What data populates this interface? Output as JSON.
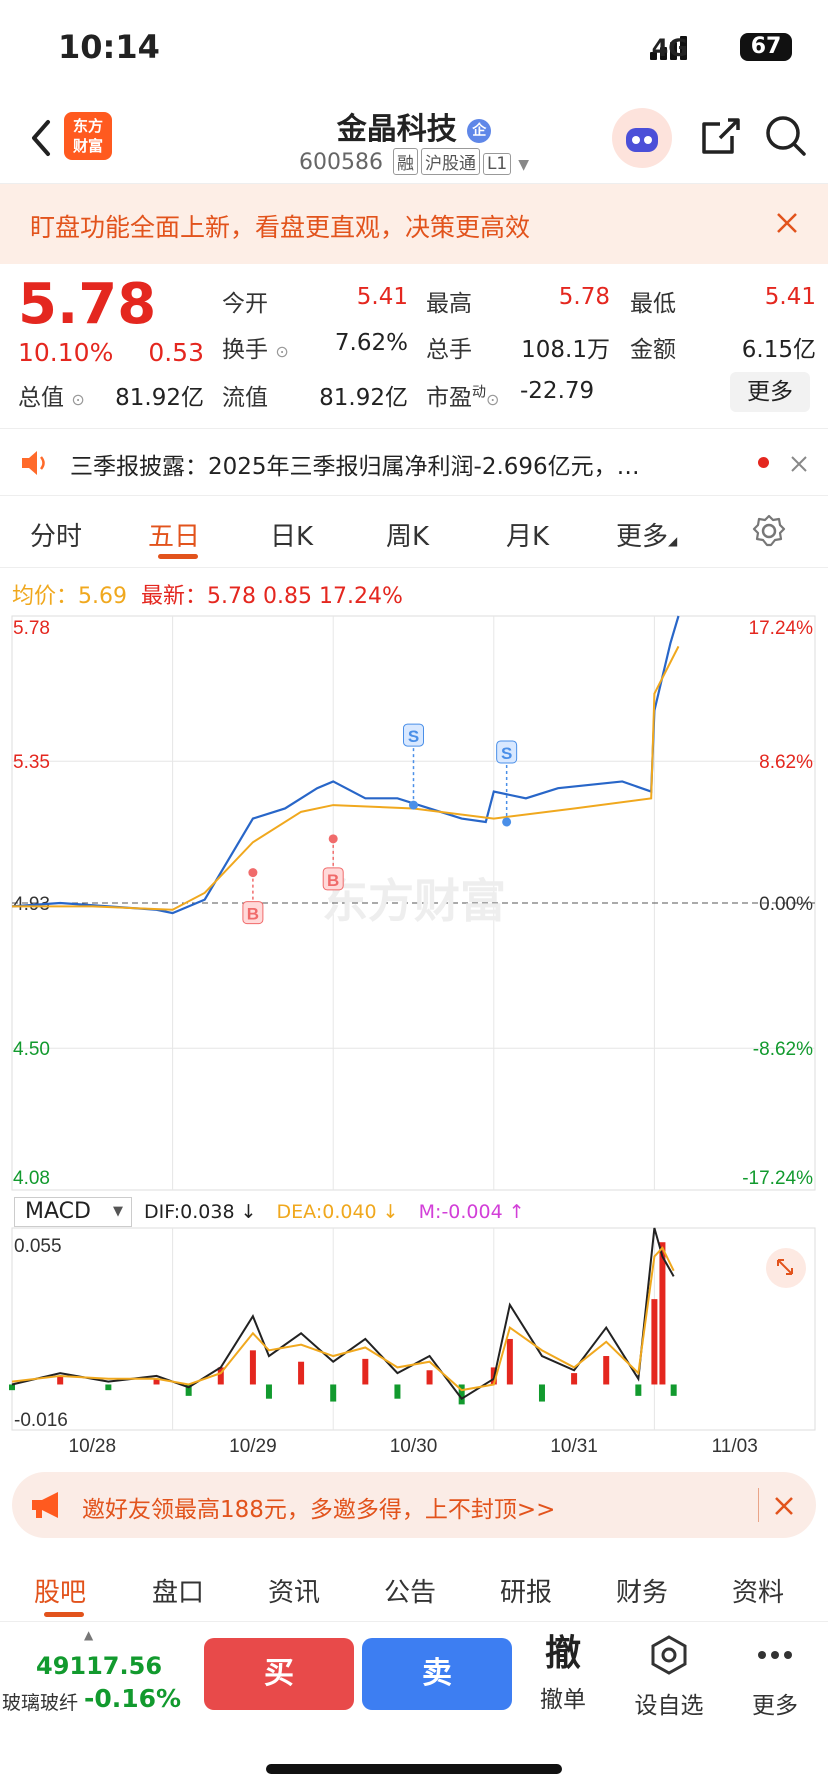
{
  "status_bar": {
    "time": "10:14",
    "network": "4G",
    "battery": "67"
  },
  "header": {
    "logo_text": "东方财富",
    "stock_name": "金晶科技",
    "stock_code": "600586",
    "tags": [
      "融",
      "沪股通",
      "L1"
    ],
    "verified_badge": "企"
  },
  "promo_banner": "盯盘功能全面上新，看盘更直观，决策更高效",
  "quote": {
    "price": "5.78",
    "change_pct": "10.10%",
    "change": "0.53",
    "open_label": "今开",
    "open": "5.41",
    "high_label": "最高",
    "high": "5.78",
    "low_label": "最低",
    "low": "5.41",
    "turnover_label": "换手",
    "turnover": "7.62%",
    "volume_label": "总手",
    "volume": "108.1万",
    "amount_label": "金额",
    "amount": "6.15亿",
    "mktcap_label": "总值",
    "mktcap": "81.92亿",
    "float_label": "流值",
    "float_cap": "81.92亿",
    "pe_label": "市盈",
    "pe_sup": "动",
    "pe": "-22.79",
    "more_button": "更多"
  },
  "notice": "三季报披露：2025年三季报归属净利润-2.696亿元，…",
  "chart_tabs": [
    "分时",
    "五日",
    "日K",
    "周K",
    "月K",
    "更多"
  ],
  "active_chart_tab": "五日",
  "chart_legend": {
    "avg_label": "均价：",
    "avg": "5.69",
    "latest_label": "最新：",
    "latest": "5.78",
    "latest_change": "0.85",
    "latest_pct": "17.24%"
  },
  "chart_data": [
    {
      "type": "line",
      "title": "",
      "x_labels": [
        "10/28",
        "10/29",
        "10/30",
        "10/31",
        "11/03"
      ],
      "y_ticks": [
        "5.78",
        "5.35",
        "4.93",
        "4.50",
        "4.08"
      ],
      "y_pct_ticks": [
        "17.24%",
        "8.62%",
        "0.00%",
        "-8.62%",
        "-17.24%"
      ],
      "ylim": [
        4.08,
        5.78
      ],
      "reference_price": 4.93,
      "series": [
        {
          "name": "最新",
          "color": "#2866c8",
          "x": [
            0,
            0.3,
            0.6,
            0.9,
            1.0,
            1.2,
            1.4,
            1.5,
            1.7,
            1.9,
            2.0,
            2.2,
            2.4,
            2.6,
            2.8,
            2.95,
            3.0,
            3.2,
            3.4,
            3.6,
            3.8,
            3.98,
            4.0,
            4.1,
            4.15
          ],
          "values": [
            4.92,
            4.93,
            4.92,
            4.91,
            4.9,
            4.94,
            5.1,
            5.18,
            5.21,
            5.27,
            5.29,
            5.24,
            5.24,
            5.21,
            5.18,
            5.17,
            5.26,
            5.24,
            5.27,
            5.28,
            5.29,
            5.26,
            5.5,
            5.7,
            5.78
          ]
        },
        {
          "name": "均价",
          "color": "#f0a81e",
          "x": [
            0,
            0.5,
            1.0,
            1.2,
            1.5,
            1.8,
            2.0,
            2.5,
            3.0,
            3.5,
            3.98,
            4.0,
            4.15
          ],
          "values": [
            4.92,
            4.92,
            4.91,
            4.96,
            5.11,
            5.2,
            5.22,
            5.21,
            5.18,
            5.21,
            5.24,
            5.55,
            5.69
          ]
        }
      ],
      "trade_markers": [
        {
          "label": "B",
          "x": 1.5,
          "price": 5.02
        },
        {
          "label": "B",
          "x": 2.0,
          "price": 5.12
        },
        {
          "label": "S",
          "x": 2.5,
          "price": 5.22
        },
        {
          "label": "S",
          "x": 3.08,
          "price": 5.17
        }
      ]
    },
    {
      "type": "bar",
      "title": "MACD",
      "y_ticks": [
        "0.055",
        "-0.016"
      ],
      "ylim": [
        -0.016,
        0.055
      ],
      "indicators": {
        "dif": "DIF:0.038 ↓",
        "dea": "DEA:0.040 ↓",
        "m": "M:-0.004 ↑"
      },
      "x": [
        0,
        0.3,
        0.6,
        0.9,
        1.1,
        1.3,
        1.5,
        1.6,
        1.8,
        2.0,
        2.2,
        2.4,
        2.6,
        2.8,
        3.0,
        3.1,
        3.3,
        3.5,
        3.7,
        3.9,
        4.0,
        4.05,
        4.12
      ],
      "histogram": [
        -0.002,
        0.003,
        -0.002,
        0.002,
        -0.004,
        0.006,
        0.012,
        -0.005,
        0.008,
        -0.006,
        0.009,
        -0.005,
        0.005,
        -0.007,
        0.006,
        0.016,
        -0.006,
        0.004,
        0.01,
        -0.004,
        0.03,
        0.05,
        -0.004
      ],
      "dif": [
        0.0,
        0.004,
        0.001,
        0.003,
        -0.001,
        0.006,
        0.024,
        0.01,
        0.018,
        0.008,
        0.016,
        0.004,
        0.01,
        -0.005,
        0.002,
        0.028,
        0.01,
        0.005,
        0.02,
        0.002,
        0.055,
        0.045,
        0.038
      ],
      "dea": [
        0.001,
        0.003,
        0.002,
        0.002,
        0.0,
        0.004,
        0.018,
        0.012,
        0.014,
        0.01,
        0.013,
        0.006,
        0.008,
        -0.002,
        0.0,
        0.02,
        0.012,
        0.006,
        0.015,
        0.004,
        0.045,
        0.048,
        0.04
      ]
    }
  ],
  "invite_banner": "邀好友领最高188元，多邀多得，上不封顶>>",
  "bottom_tabs": [
    "股吧",
    "盘口",
    "资讯",
    "公告",
    "研报",
    "财务",
    "资料"
  ],
  "active_bottom_tab": "股吧",
  "footer": {
    "index_value": "49117.56",
    "index_name": "玻璃玻纤",
    "index_change": "-0.16%",
    "buy": "买",
    "sell": "卖",
    "cancel_icon": "撤",
    "cancel_label": "撤单",
    "watchlist_label": "设自选",
    "more_label": "更多"
  },
  "watermark": "东方财富"
}
